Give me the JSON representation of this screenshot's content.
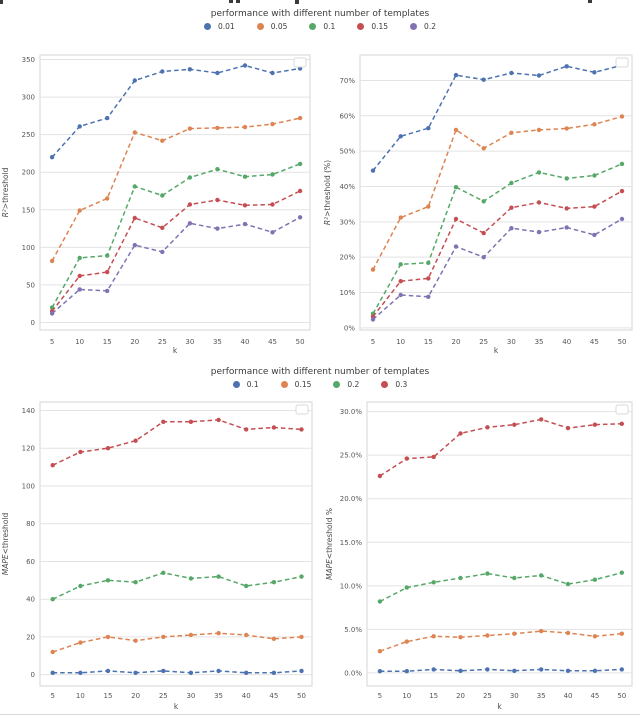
{
  "legends": [
    {
      "title": "performance with different number of templates",
      "entries": [
        {
          "label": "0.01",
          "color": "#4C72B0"
        },
        {
          "label": "0.05",
          "color": "#DD8452"
        },
        {
          "label": "0.1",
          "color": "#55A868"
        },
        {
          "label": "0.15",
          "color": "#C44E52"
        },
        {
          "label": "0.2",
          "color": "#8172B3"
        }
      ]
    },
    {
      "title": "performance with different number of templates",
      "entries": [
        {
          "label": "0.1",
          "color": "#4C72B0"
        },
        {
          "label": "0.15",
          "color": "#DD8452"
        },
        {
          "label": "0.2",
          "color": "#55A868"
        },
        {
          "label": "0.3",
          "color": "#C44E52"
        }
      ]
    }
  ],
  "chart_data": [
    {
      "type": "line",
      "title": "",
      "xlabel": "k",
      "ylabel": "R²>threshold",
      "ylabel_italic": "R²",
      "ylabel_rest": ">threshold",
      "x": [
        5,
        10,
        15,
        20,
        25,
        30,
        35,
        40,
        45,
        50
      ],
      "ylim": [
        -10,
        356
      ],
      "yticks": {
        "values": [
          0,
          50,
          100,
          150,
          200,
          250,
          300,
          350
        ],
        "labels": [
          "0",
          "50",
          "100",
          "150",
          "200",
          "250",
          "300",
          "350"
        ]
      },
      "grid": true,
      "line_style": "dashed",
      "marker": "circle",
      "legend_frame": "empty-box-top-right",
      "series": [
        {
          "name": "0.01",
          "color": "#4C72B0",
          "values": [
            220,
            261,
            272,
            322,
            334,
            337,
            332,
            342,
            332,
            338
          ]
        },
        {
          "name": "0.05",
          "color": "#DD8452",
          "values": [
            82,
            149,
            165,
            253,
            242,
            258,
            259,
            260,
            264,
            272
          ]
        },
        {
          "name": "0.1",
          "color": "#55A868",
          "values": [
            20,
            86,
            89,
            181,
            169,
            193,
            204,
            194,
            197,
            211
          ]
        },
        {
          "name": "0.15",
          "color": "#C44E52",
          "values": [
            15,
            62,
            67,
            139,
            126,
            157,
            163,
            156,
            157,
            175
          ]
        },
        {
          "name": "0.2",
          "color": "#8172B3",
          "values": [
            12,
            44,
            42,
            103,
            94,
            132,
            125,
            131,
            120,
            140
          ]
        }
      ]
    },
    {
      "type": "line",
      "title": "",
      "xlabel": "k",
      "ylabel": "R²>threshold (%)",
      "ylabel_italic": "R²",
      "ylabel_rest": ">threshold (%)",
      "x": [
        5,
        10,
        15,
        20,
        25,
        30,
        35,
        40,
        45,
        50
      ],
      "ylim": [
        -0.6,
        77.2
      ],
      "yticks": {
        "values": [
          0,
          10,
          20,
          30,
          40,
          50,
          60,
          70
        ],
        "labels": [
          "0%",
          "10%",
          "20%",
          "30%",
          "40%",
          "50%",
          "60%",
          "70%"
        ]
      },
      "grid": true,
      "line_style": "dashed",
      "marker": "circle",
      "legend_frame": "empty-box-top-right",
      "series": [
        {
          "name": "0.01",
          "color": "#4C72B0",
          "values": [
            44.5,
            54.2,
            56.5,
            71.5,
            70.2,
            72.1,
            71.4,
            74.0,
            72.3,
            74.3
          ]
        },
        {
          "name": "0.05",
          "color": "#DD8452",
          "values": [
            16.5,
            31.2,
            34.3,
            56.0,
            50.8,
            55.2,
            56.0,
            56.4,
            57.6,
            59.8
          ]
        },
        {
          "name": "0.1",
          "color": "#55A868",
          "values": [
            4.0,
            18.0,
            18.4,
            39.8,
            35.8,
            41.0,
            44.0,
            42.3,
            43.1,
            46.4
          ]
        },
        {
          "name": "0.15",
          "color": "#C44E52",
          "values": [
            3.2,
            13.2,
            14.0,
            30.8,
            26.8,
            34.0,
            35.5,
            33.8,
            34.3,
            38.7
          ]
        },
        {
          "name": "0.2",
          "color": "#8172B3",
          "values": [
            2.4,
            9.3,
            8.8,
            23.0,
            20.0,
            28.2,
            27.1,
            28.4,
            26.3,
            30.8
          ]
        }
      ]
    },
    {
      "type": "line",
      "title": "",
      "xlabel": "k",
      "ylabel": "MAPE<threshold",
      "ylabel_italic": "MAPE",
      "ylabel_rest": "<threshold",
      "x": [
        5,
        10,
        15,
        20,
        25,
        30,
        35,
        40,
        45,
        50
      ],
      "ylim": [
        -6,
        144.5
      ],
      "yticks": {
        "values": [
          0,
          20,
          40,
          60,
          80,
          100,
          120,
          140
        ],
        "labels": [
          "0",
          "20",
          "40",
          "60",
          "80",
          "100",
          "120",
          "140"
        ]
      },
      "grid": true,
      "line_style": "dashed",
      "marker": "circle",
      "legend_frame": "empty-box-top-right",
      "series": [
        {
          "name": "0.1",
          "color": "#4C72B0",
          "values": [
            1,
            1,
            2,
            1,
            2,
            1,
            2,
            1,
            1,
            2
          ]
        },
        {
          "name": "0.15",
          "color": "#DD8452",
          "values": [
            12,
            17,
            20,
            18,
            20,
            21,
            22,
            21,
            19,
            20
          ]
        },
        {
          "name": "0.2",
          "color": "#55A868",
          "values": [
            40,
            47,
            50,
            49,
            54,
            51,
            52,
            47,
            49,
            52
          ]
        },
        {
          "name": "0.3",
          "color": "#C44E52",
          "values": [
            111,
            118,
            120,
            124,
            134,
            134,
            135,
            130,
            131,
            130
          ]
        }
      ]
    },
    {
      "type": "line",
      "title": "",
      "xlabel": "k",
      "ylabel": "MAPE<threshold %",
      "ylabel_italic": "MAPE",
      "ylabel_rest": "<threshold %",
      "x": [
        5,
        10,
        15,
        20,
        25,
        30,
        35,
        40,
        45,
        50
      ],
      "ylim": [
        -1.5,
        31.1
      ],
      "yticks": {
        "values": [
          0,
          5,
          10,
          15,
          20,
          25,
          30
        ],
        "labels": [
          "0.0%",
          "5.0%",
          "10.0%",
          "15.0%",
          "20.0%",
          "25.0%",
          "30.0%"
        ]
      },
      "grid": true,
      "line_style": "dashed",
      "marker": "circle",
      "legend_frame": "empty-box-top-right",
      "series": [
        {
          "name": "0.1",
          "color": "#4C72B0",
          "values": [
            0.2,
            0.2,
            0.4,
            0.25,
            0.4,
            0.25,
            0.4,
            0.25,
            0.25,
            0.4
          ]
        },
        {
          "name": "0.15",
          "color": "#DD8452",
          "values": [
            2.5,
            3.6,
            4.2,
            4.1,
            4.3,
            4.5,
            4.8,
            4.6,
            4.2,
            4.5
          ]
        },
        {
          "name": "0.2",
          "color": "#55A868",
          "values": [
            8.2,
            9.8,
            10.4,
            10.9,
            11.4,
            10.9,
            11.2,
            10.2,
            10.7,
            11.5
          ]
        },
        {
          "name": "0.3",
          "color": "#C44E52",
          "values": [
            22.6,
            24.6,
            24.8,
            27.5,
            28.2,
            28.5,
            29.1,
            28.1,
            28.5,
            28.6
          ]
        }
      ]
    }
  ]
}
